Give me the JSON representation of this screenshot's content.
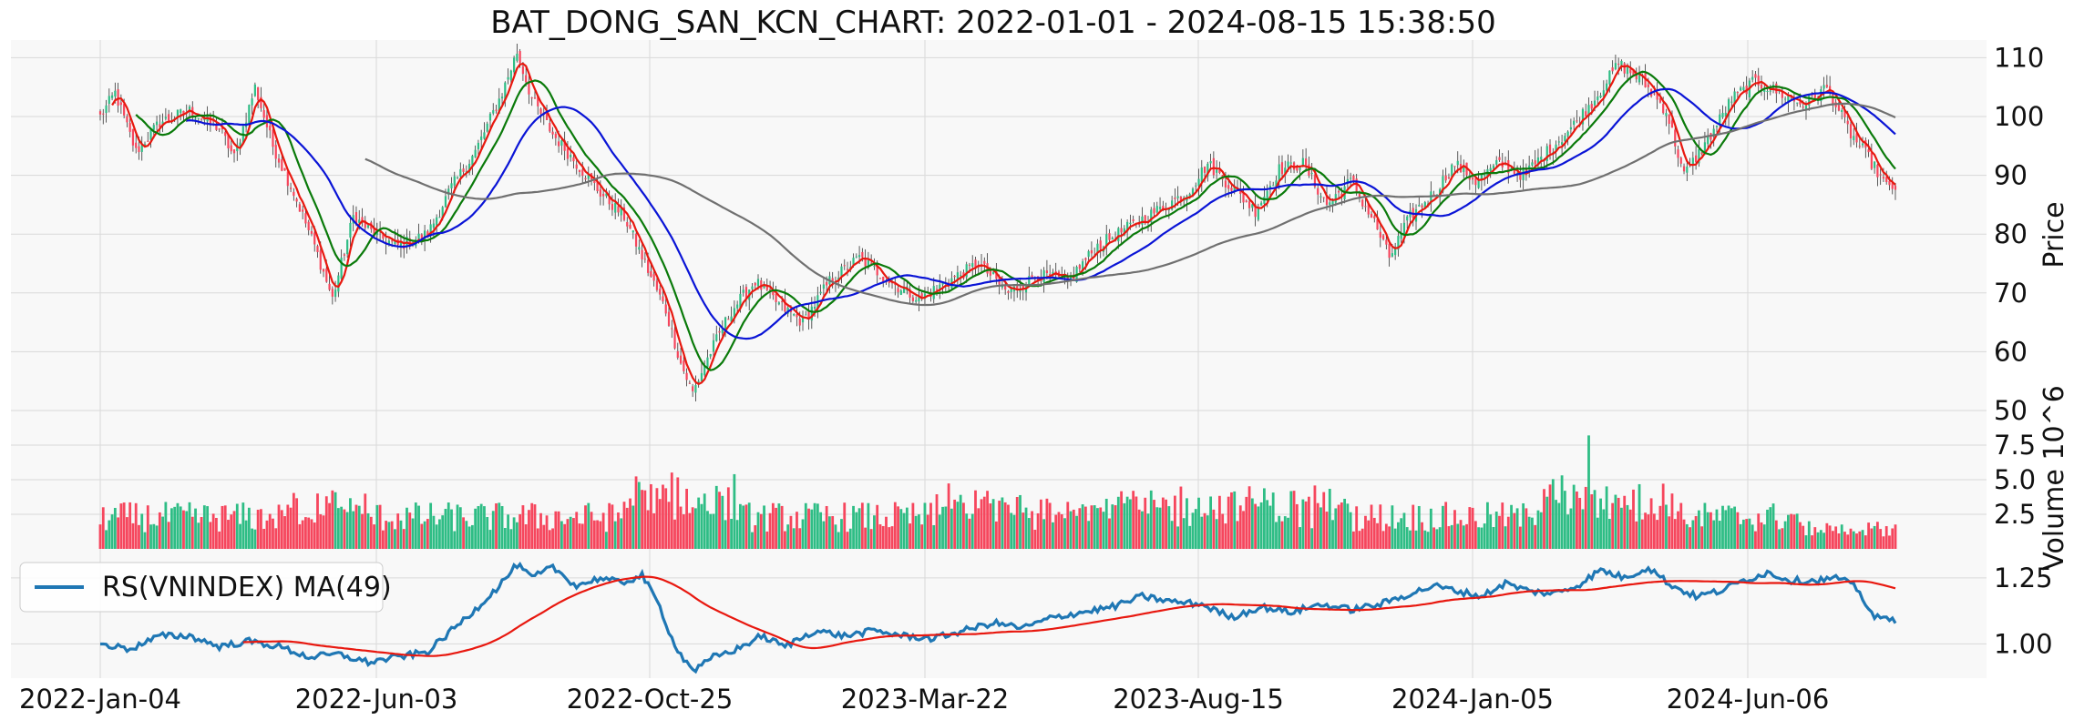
{
  "title": "BAT_DONG_SAN_KCN_CHART: 2022-01-01 - 2024-08-15 15:38:50",
  "colors": {
    "up": "#2ebd85",
    "down": "#f6465d",
    "ma_red": "#e8180f",
    "ma_green": "#0a7a0a",
    "ma_blue": "#0a14d6",
    "ma_gray": "#707070",
    "rs_line": "#1f77b4",
    "panel_bg": "#f8f8f8",
    "grid": "#d9d9d9"
  },
  "chart_data": [
    {
      "type": "candlestick",
      "panel": "price",
      "ylabel": "Price",
      "ylim": [
        50,
        113
      ],
      "yticks": [
        "50",
        "60",
        "70",
        "80",
        "90",
        "100",
        "110"
      ],
      "xticks": [
        "2022-Jan-04",
        "2022-Jun-03",
        "2022-Oct-25",
        "2023-Mar-22",
        "2023-Aug-15",
        "2024-Jan-05",
        "2024-Jun-06"
      ],
      "close_keypoints": [
        [
          0,
          100
        ],
        [
          5,
          104
        ],
        [
          12,
          94
        ],
        [
          20,
          99
        ],
        [
          30,
          101
        ],
        [
          40,
          98
        ],
        [
          45,
          93
        ],
        [
          52,
          105
        ],
        [
          58,
          95
        ],
        [
          65,
          87
        ],
        [
          72,
          78
        ],
        [
          78,
          69
        ],
        [
          85,
          83
        ],
        [
          92,
          80
        ],
        [
          100,
          78
        ],
        [
          110,
          80
        ],
        [
          118,
          88
        ],
        [
          126,
          94
        ],
        [
          135,
          104
        ],
        [
          140,
          111
        ],
        [
          145,
          103
        ],
        [
          152,
          97
        ],
        [
          160,
          92
        ],
        [
          168,
          87
        ],
        [
          176,
          83
        ],
        [
          183,
          75
        ],
        [
          190,
          67
        ],
        [
          195,
          58
        ],
        [
          199,
          53
        ],
        [
          205,
          60
        ],
        [
          212,
          67
        ],
        [
          220,
          72
        ],
        [
          228,
          68
        ],
        [
          236,
          65
        ],
        [
          245,
          72
        ],
        [
          255,
          76
        ],
        [
          265,
          72
        ],
        [
          275,
          69
        ],
        [
          285,
          72
        ],
        [
          295,
          75
        ],
        [
          305,
          70
        ],
        [
          315,
          73
        ],
        [
          325,
          72
        ],
        [
          335,
          78
        ],
        [
          345,
          81
        ],
        [
          355,
          84
        ],
        [
          365,
          87
        ],
        [
          372,
          92
        ],
        [
          380,
          88
        ],
        [
          388,
          84
        ],
        [
          396,
          91
        ],
        [
          404,
          92
        ],
        [
          412,
          85
        ],
        [
          420,
          89
        ],
        [
          428,
          82
        ],
        [
          433,
          76
        ],
        [
          440,
          83
        ],
        [
          448,
          87
        ],
        [
          455,
          92
        ],
        [
          462,
          89
        ],
        [
          470,
          92
        ],
        [
          478,
          90
        ],
        [
          486,
          94
        ],
        [
          494,
          98
        ],
        [
          502,
          103
        ],
        [
          510,
          109
        ],
        [
          518,
          106
        ],
        [
          526,
          101
        ],
        [
          532,
          90
        ],
        [
          540,
          96
        ],
        [
          548,
          103
        ],
        [
          556,
          106
        ],
        [
          564,
          104
        ],
        [
          572,
          102
        ],
        [
          580,
          105
        ],
        [
          588,
          97
        ],
        [
          594,
          93
        ],
        [
          600,
          88
        ],
        [
          603,
          88
        ]
      ],
      "moving_averages": [
        {
          "color": "red",
          "window": 5
        },
        {
          "color": "green",
          "window": 13
        },
        {
          "color": "blue",
          "window": 30
        },
        {
          "color": "gray",
          "window": 90
        }
      ]
    },
    {
      "type": "bar",
      "panel": "volume",
      "ylabel": "Volume  10^6",
      "ylim": [
        0,
        10
      ],
      "yticks": [
        "2.5",
        "5.0",
        "7.5"
      ]
    },
    {
      "type": "line",
      "panel": "relative-strength",
      "ylim": [
        0.87,
        1.36
      ],
      "yticks": [
        "1.00",
        "1.25"
      ],
      "legend": "RS(VNINDEX) MA(49)",
      "legend_position": "upper-left",
      "rs_keypoints": [
        [
          0,
          1.0
        ],
        [
          10,
          0.98
        ],
        [
          20,
          1.03
        ],
        [
          30,
          1.03
        ],
        [
          40,
          0.99
        ],
        [
          50,
          1.01
        ],
        [
          60,
          0.99
        ],
        [
          70,
          0.95
        ],
        [
          80,
          0.96
        ],
        [
          90,
          0.93
        ],
        [
          100,
          0.95
        ],
        [
          110,
          0.97
        ],
        [
          118,
          1.05
        ],
        [
          126,
          1.13
        ],
        [
          134,
          1.22
        ],
        [
          140,
          1.3
        ],
        [
          145,
          1.25
        ],
        [
          152,
          1.29
        ],
        [
          160,
          1.22
        ],
        [
          168,
          1.25
        ],
        [
          175,
          1.23
        ],
        [
          182,
          1.26
        ],
        [
          188,
          1.14
        ],
        [
          192,
          1.02
        ],
        [
          196,
          0.94
        ],
        [
          200,
          0.9
        ],
        [
          206,
          0.95
        ],
        [
          214,
          0.98
        ],
        [
          222,
          1.03
        ],
        [
          230,
          0.99
        ],
        [
          240,
          1.05
        ],
        [
          250,
          1.03
        ],
        [
          260,
          1.05
        ],
        [
          270,
          1.03
        ],
        [
          280,
          1.02
        ],
        [
          290,
          1.05
        ],
        [
          300,
          1.08
        ],
        [
          310,
          1.06
        ],
        [
          320,
          1.1
        ],
        [
          330,
          1.12
        ],
        [
          340,
          1.14
        ],
        [
          350,
          1.18
        ],
        [
          360,
          1.16
        ],
        [
          370,
          1.15
        ],
        [
          380,
          1.1
        ],
        [
          390,
          1.14
        ],
        [
          400,
          1.12
        ],
        [
          410,
          1.15
        ],
        [
          420,
          1.13
        ],
        [
          430,
          1.15
        ],
        [
          440,
          1.19
        ],
        [
          448,
          1.22
        ],
        [
          456,
          1.2
        ],
        [
          464,
          1.18
        ],
        [
          472,
          1.23
        ],
        [
          480,
          1.2
        ],
        [
          488,
          1.19
        ],
        [
          496,
          1.22
        ],
        [
          504,
          1.28
        ],
        [
          512,
          1.25
        ],
        [
          520,
          1.29
        ],
        [
          528,
          1.22
        ],
        [
          536,
          1.18
        ],
        [
          544,
          1.2
        ],
        [
          552,
          1.24
        ],
        [
          560,
          1.27
        ],
        [
          568,
          1.24
        ],
        [
          576,
          1.24
        ],
        [
          584,
          1.25
        ],
        [
          590,
          1.21
        ],
        [
          596,
          1.1
        ],
        [
          603,
          1.09
        ]
      ],
      "rs_ma_window": 49
    }
  ]
}
